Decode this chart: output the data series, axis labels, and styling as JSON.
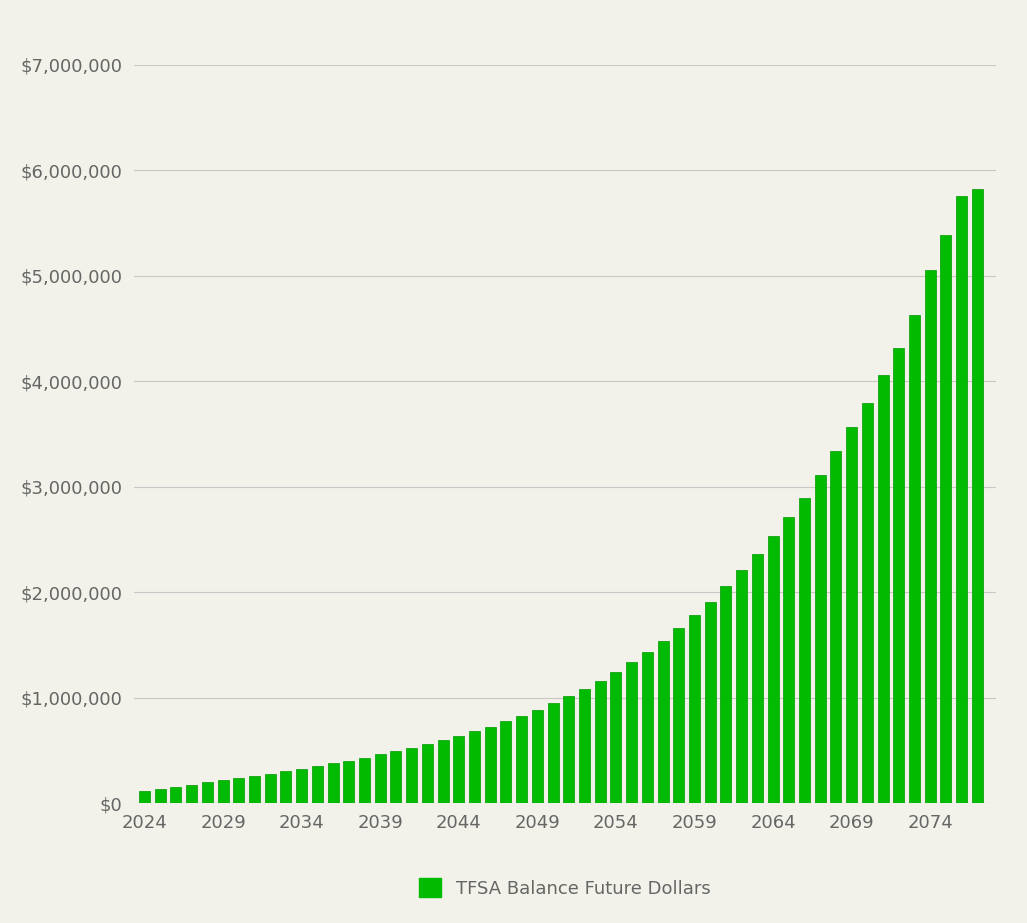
{
  "years": [
    2024,
    2025,
    2026,
    2027,
    2028,
    2029,
    2030,
    2031,
    2032,
    2033,
    2034,
    2035,
    2036,
    2037,
    2038,
    2039,
    2040,
    2041,
    2042,
    2043,
    2044,
    2045,
    2046,
    2047,
    2048,
    2049,
    2050,
    2051,
    2052,
    2053,
    2054,
    2055,
    2056,
    2057,
    2058,
    2059,
    2060,
    2061,
    2062,
    2063,
    2064,
    2065,
    2066,
    2067,
    2068,
    2069,
    2070,
    2071,
    2072,
    2073,
    2074,
    2075,
    2076,
    2077
  ],
  "values": [
    110000,
    130000,
    150000,
    170000,
    195000,
    215000,
    235000,
    255000,
    275000,
    300000,
    325000,
    350000,
    375000,
    400000,
    430000,
    460000,
    490000,
    525000,
    560000,
    595000,
    635000,
    680000,
    725000,
    775000,
    825000,
    885000,
    945000,
    1010000,
    1085000,
    1160000,
    1245000,
    1335000,
    1435000,
    1540000,
    1655000,
    1780000,
    1910000,
    2055000,
    2205000,
    2365000,
    2530000,
    2715000,
    2895000,
    3105000,
    3340000,
    3565000,
    3795000,
    4055000,
    4315000,
    4625000,
    5055000,
    5385000,
    5750000,
    5820000
  ],
  "bar_color": "#00BB00",
  "bar_edge_color": "#009900",
  "background_color": "#F2F2EA",
  "grid_color": "#C8C8C8",
  "ytick_labels": [
    "$0",
    "$1,000,000",
    "$2,000,000",
    "$3,000,000",
    "$4,000,000",
    "$5,000,000",
    "$6,000,000",
    "$7,000,000"
  ],
  "ytick_values": [
    0,
    1000000,
    2000000,
    3000000,
    4000000,
    5000000,
    6000000,
    7000000
  ],
  "xtick_labels": [
    "2024",
    "2029",
    "2034",
    "2039",
    "2044",
    "2049",
    "2054",
    "2059",
    "2064",
    "2069",
    "2074"
  ],
  "xtick_values": [
    2024,
    2029,
    2034,
    2039,
    2044,
    2049,
    2054,
    2059,
    2064,
    2069,
    2074
  ],
  "legend_label": "TFSA Balance Future Dollars",
  "legend_color": "#00BB00",
  "ylim": [
    0,
    7000000
  ],
  "xlim_min": 2023.3,
  "xlim_max": 2078.2
}
